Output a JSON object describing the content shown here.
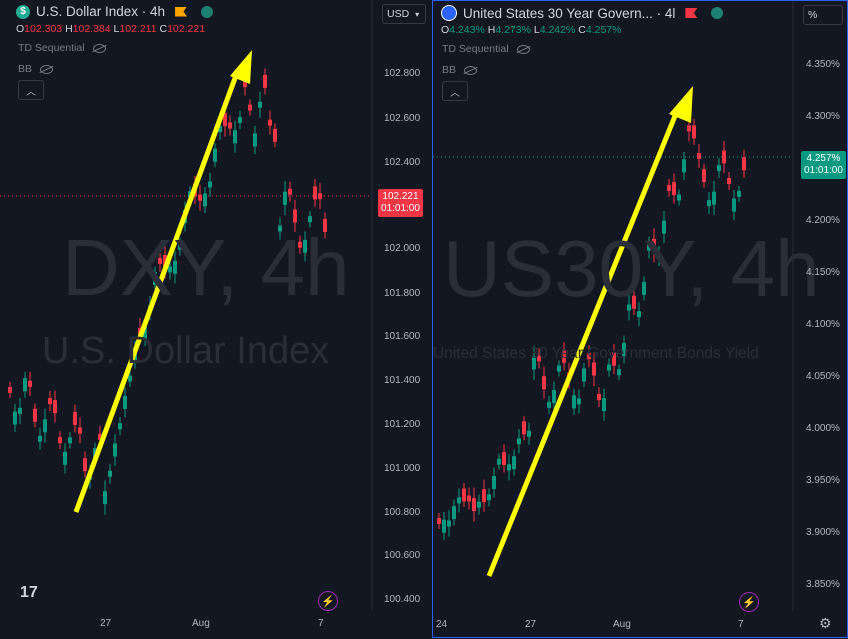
{
  "left": {
    "title": "U.S. Dollar Index · 4h",
    "symbol_letter": "$",
    "ohlc": {
      "o": "102.303",
      "h": "102.384",
      "l": "102.211",
      "c": "102.221"
    },
    "indicators": [
      "TD Sequential",
      "BB"
    ],
    "currency": "USD",
    "watermark1": "DXY, 4h",
    "watermark2": "U.S. Dollar Index",
    "y_ticks": [
      "102.800",
      "102.600",
      "102.400",
      "102.000",
      "101.800",
      "101.600",
      "101.400",
      "101.200",
      "101.000",
      "100.800",
      "100.600",
      "100.400"
    ],
    "price_tag": {
      "value": "102.221",
      "countdown": "01:01:00"
    },
    "x_ticks": [
      "27",
      "Aug",
      "7"
    ],
    "logo": "17"
  },
  "right": {
    "title": "United States 30 Year Govern... · 4l",
    "ohlc": {
      "o": "4.243%",
      "h": "4.273%",
      "l": "4.242%",
      "c": "4.257%"
    },
    "indicators": [
      "TD Sequential",
      "BB"
    ],
    "unit": "%",
    "watermark1": "US30Y, 4h",
    "watermark2": "United States 30 Year Government Bonds Yield",
    "y_ticks": [
      "4.350%",
      "4.300%",
      "4.200%",
      "4.150%",
      "4.100%",
      "4.050%",
      "4.000%",
      "3.950%",
      "3.900%",
      "3.850%"
    ],
    "price_tag": {
      "value": "4.257%",
      "countdown": "01:01:00"
    },
    "x_ticks": [
      "24",
      "27",
      "Aug",
      "7"
    ]
  },
  "colors": {
    "up": "#089981",
    "down": "#f23645",
    "arrow": "#ffff00",
    "bg": "#131722",
    "accent": "#2962ff"
  },
  "chart_data": [
    {
      "type": "candlestick",
      "title": "U.S. Dollar Index · 4h",
      "ylim": [
        100.4,
        102.9
      ],
      "x_ticks": [
        "27",
        "Aug",
        "7"
      ],
      "trend_arrow": {
        "from": 100.75,
        "to": 102.95
      }
    },
    {
      "type": "candlestick",
      "title": "United States 30 Year Govern... · 4l",
      "ylim": [
        3.84,
        4.36
      ],
      "x_ticks": [
        "24",
        "27",
        "Aug",
        "7"
      ],
      "trend_arrow": {
        "from": 3.85,
        "to": 4.33
      }
    }
  ]
}
